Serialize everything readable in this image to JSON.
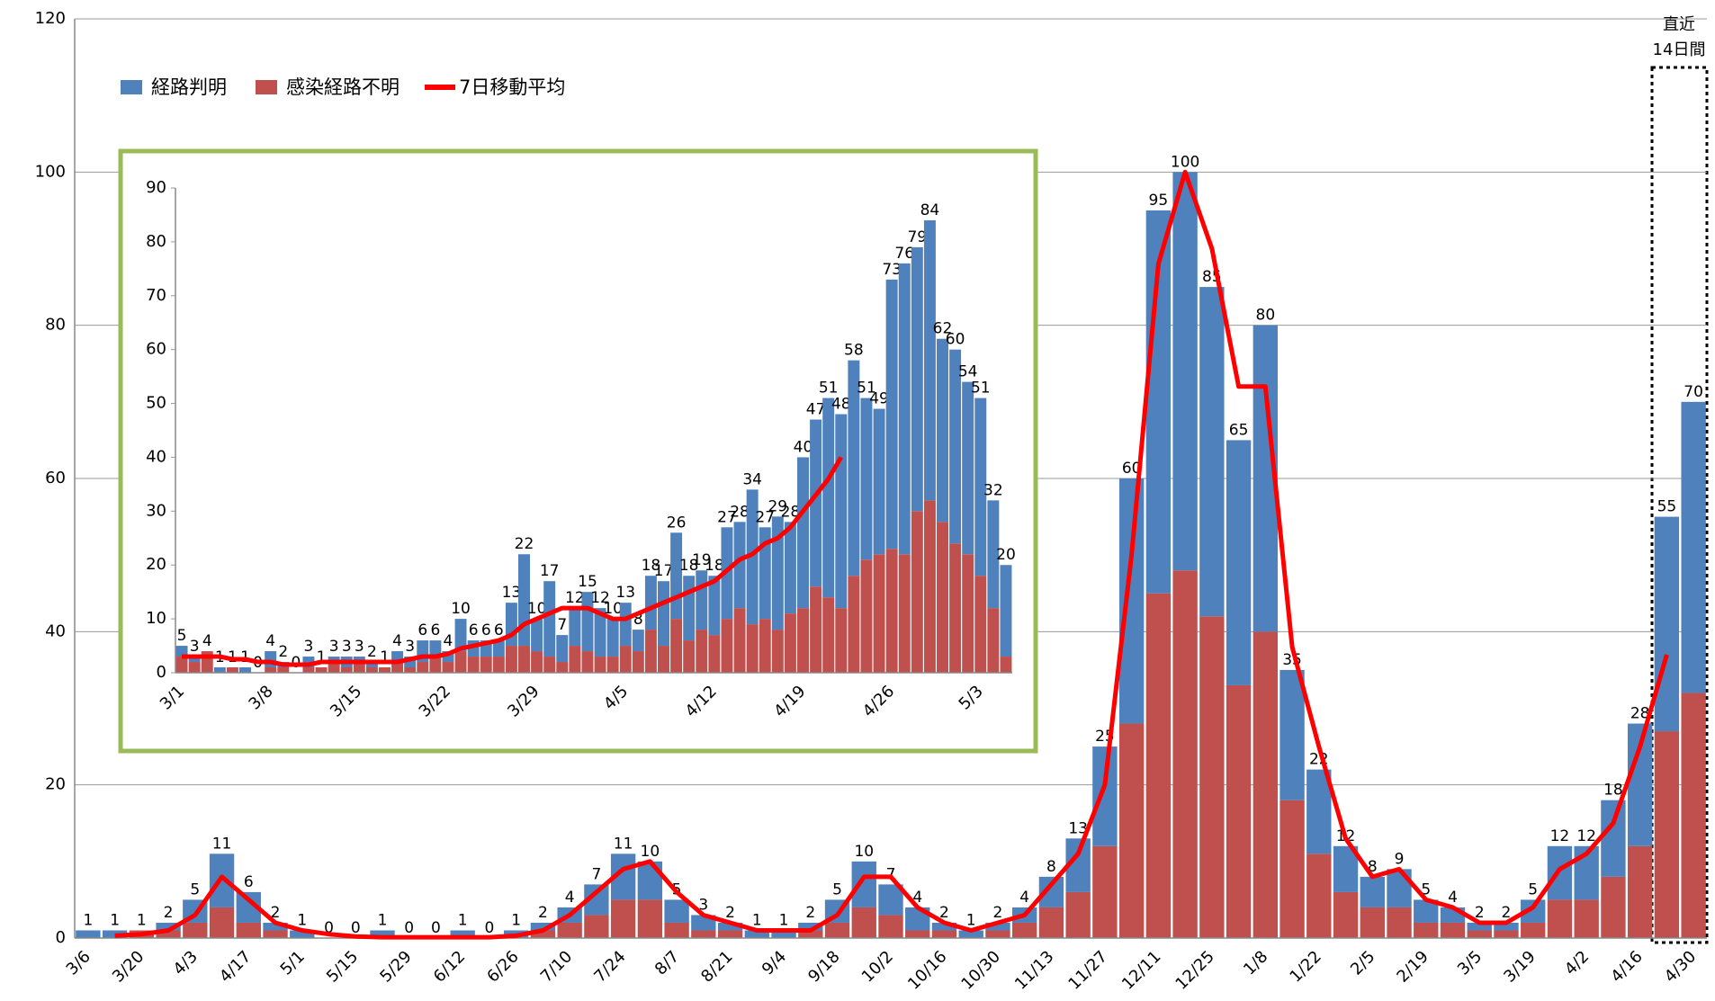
{
  "chart_data": [
    {
      "type": "bar",
      "stacked": true,
      "grid": true,
      "annotations": [
        "直近",
        "14日間"
      ],
      "categories": [
        "3/6",
        null,
        "3/20",
        null,
        "4/3",
        null,
        "4/17",
        null,
        "5/1",
        null,
        "5/15",
        null,
        "5/29",
        null,
        "6/12",
        null,
        "6/26",
        null,
        "7/10",
        null,
        "7/24",
        null,
        "8/7",
        null,
        "8/21",
        null,
        "9/4",
        null,
        "9/18",
        null,
        "10/2",
        null,
        "10/16",
        null,
        "10/30",
        null,
        "11/13",
        null,
        "11/27",
        null,
        "12/11",
        null,
        "12/25",
        null,
        "1/8",
        null,
        "1/22",
        null,
        "2/5",
        null,
        "2/19",
        null,
        "3/5",
        null,
        "3/19",
        null,
        "4/2",
        null,
        "4/16",
        null,
        "4/30"
      ],
      "ylim": [
        0,
        120
      ],
      "yticks": [
        0,
        20,
        40,
        60,
        80,
        100,
        120
      ],
      "series": [
        {
          "name": "経路判明",
          "kind": "bar",
          "color": "#4f81bd",
          "values": [
            1,
            1,
            0,
            1,
            3,
            7,
            4,
            1,
            1,
            0,
            0,
            1,
            0,
            0,
            1,
            0,
            1,
            1,
            2,
            4,
            6,
            5,
            3,
            2,
            1,
            1,
            1,
            1,
            3,
            6,
            4,
            3,
            1,
            1,
            1,
            2,
            4,
            7,
            13,
            32,
            50,
            52,
            43,
            32,
            40,
            17,
            11,
            6,
            4,
            5,
            3,
            2,
            1,
            1,
            3,
            7,
            7,
            10,
            16,
            28,
            38
          ]
        },
        {
          "name": "感染経路不明",
          "kind": "bar",
          "color": "#c0504d",
          "values": [
            0,
            0,
            1,
            1,
            2,
            4,
            2,
            1,
            0,
            0,
            0,
            0,
            0,
            0,
            0,
            0,
            0,
            1,
            2,
            3,
            5,
            5,
            2,
            1,
            1,
            0,
            0,
            1,
            2,
            4,
            3,
            1,
            1,
            0,
            1,
            2,
            4,
            6,
            12,
            28,
            45,
            48,
            42,
            33,
            40,
            18,
            11,
            6,
            4,
            4,
            2,
            2,
            1,
            1,
            2,
            5,
            5,
            8,
            12,
            27,
            32
          ]
        },
        {
          "name": "7日移動平均",
          "kind": "line",
          "color": "#ff0000",
          "values": [
            null,
            0.3,
            0.5,
            1,
            3,
            8,
            5,
            2,
            1,
            0.5,
            0.2,
            0.1,
            0.1,
            0.1,
            0.1,
            0.1,
            0.3,
            1,
            3,
            6,
            9,
            10,
            6,
            3,
            2,
            1,
            1,
            1,
            3,
            8,
            8,
            4,
            2,
            1,
            2,
            3,
            7,
            11,
            20,
            50,
            88,
            100,
            90,
            72,
            72,
            38,
            25,
            13,
            8,
            9,
            5,
            4,
            2,
            2,
            4,
            9,
            11,
            15,
            25,
            37,
            null
          ]
        }
      ],
      "totals": [
        1,
        1,
        1,
        2,
        5,
        11,
        6,
        2,
        1,
        0,
        0,
        1,
        0,
        0,
        1,
        0,
        1,
        2,
        4,
        7,
        11,
        10,
        5,
        3,
        2,
        1,
        1,
        2,
        5,
        10,
        7,
        4,
        2,
        1,
        2,
        4,
        8,
        13,
        25,
        60,
        95,
        100,
        85,
        65,
        80,
        35,
        22,
        12,
        8,
        9,
        5,
        4,
        2,
        2,
        5,
        12,
        12,
        18,
        28,
        55,
        70
      ]
    },
    {
      "type": "bar",
      "stacked": true,
      "grid": false,
      "categories": [
        "3/1",
        null,
        null,
        null,
        null,
        null,
        null,
        "3/8",
        null,
        null,
        null,
        null,
        null,
        null,
        "3/15",
        null,
        null,
        null,
        null,
        null,
        null,
        "3/22",
        null,
        null,
        null,
        null,
        null,
        null,
        "3/29",
        null,
        null,
        null,
        null,
        null,
        null,
        "4/5",
        null,
        null,
        null,
        null,
        null,
        null,
        "4/12",
        null,
        null,
        null,
        null,
        null,
        null,
        "4/19",
        null,
        null,
        null,
        null,
        null,
        null,
        "4/26",
        null,
        null,
        null,
        null,
        null,
        null,
        "5/3",
        null,
        null
      ],
      "ylim": [
        0,
        90
      ],
      "yticks": [
        0,
        10,
        20,
        30,
        40,
        50,
        60,
        70,
        80,
        90
      ],
      "series": [
        {
          "kind": "bar",
          "color": "#4f81bd",
          "values": [
            2,
            1,
            0,
            1,
            0,
            1,
            0,
            3,
            1,
            0,
            2,
            0,
            1,
            2,
            1,
            1,
            0,
            2,
            2,
            4,
            3,
            2,
            6,
            3,
            3,
            3,
            8,
            17,
            6,
            14,
            5,
            7,
            11,
            9,
            7,
            8,
            4,
            10,
            12,
            16,
            12,
            11,
            11,
            17,
            16,
            25,
            17,
            21,
            17,
            28,
            31,
            37,
            36,
            40,
            30,
            27,
            50,
            54,
            49,
            52,
            34,
            36,
            32,
            33,
            20,
            17
          ]
        },
        {
          "kind": "bar",
          "color": "#c0504d",
          "values": [
            3,
            2,
            4,
            0,
            1,
            0,
            0,
            1,
            1,
            0,
            1,
            1,
            2,
            1,
            2,
            1,
            1,
            2,
            1,
            2,
            3,
            2,
            4,
            3,
            3,
            3,
            5,
            5,
            4,
            3,
            2,
            5,
            4,
            3,
            3,
            5,
            4,
            8,
            5,
            10,
            6,
            8,
            7,
            10,
            12,
            9,
            10,
            8,
            11,
            12,
            16,
            14,
            12,
            18,
            21,
            22,
            23,
            22,
            30,
            32,
            28,
            24,
            22,
            18,
            12,
            3
          ]
        },
        {
          "kind": "line",
          "color": "#ff0000",
          "values": [
            3,
            3,
            3,
            3,
            2.5,
            2.5,
            2,
            2,
            1.5,
            1.5,
            1.5,
            2,
            2,
            2,
            2,
            2,
            2,
            2,
            2.5,
            3,
            3,
            3.5,
            4.5,
            5,
            5.5,
            6,
            7,
            9,
            10,
            11,
            12,
            12,
            12,
            11,
            10,
            10,
            11,
            12,
            13,
            14,
            15,
            16,
            17,
            19,
            21,
            22,
            24,
            25,
            27,
            30,
            33,
            36,
            40,
            null,
            null,
            null,
            null,
            null,
            null,
            null,
            null,
            null,
            null,
            null,
            null,
            null
          ]
        }
      ],
      "totals": [
        5,
        3,
        4,
        1,
        1,
        1,
        0,
        4,
        2,
        0,
        3,
        1,
        3,
        3,
        3,
        2,
        1,
        4,
        3,
        6,
        6,
        4,
        10,
        6,
        6,
        6,
        13,
        22,
        10,
        17,
        7,
        12,
        15,
        12,
        10,
        13,
        8,
        18,
        17,
        26,
        18,
        19,
        18,
        27,
        28,
        34,
        27,
        29,
        28,
        40,
        47,
        51,
        48,
        58,
        51,
        49,
        73,
        76,
        79,
        84,
        62,
        60,
        54,
        51,
        32,
        20
      ]
    }
  ]
}
